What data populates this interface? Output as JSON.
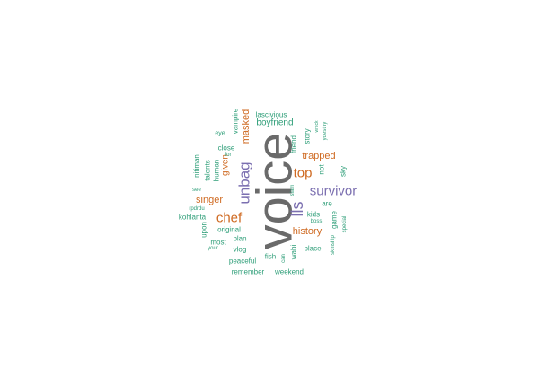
{
  "palette": {
    "gray": "#6a6a6a",
    "purple": "#7b6fb0",
    "orange": "#cf6a22",
    "green": "#2e9e78"
  },
  "words": [
    {
      "text": "voice",
      "color": "gray"
    },
    {
      "text": "survivor",
      "color": "purple"
    },
    {
      "text": "unbag",
      "color": "purple"
    },
    {
      "text": "lls",
      "color": "purple"
    },
    {
      "text": "chef",
      "color": "orange"
    },
    {
      "text": "top",
      "color": "orange"
    },
    {
      "text": "singer",
      "color": "orange"
    },
    {
      "text": "history",
      "color": "orange"
    },
    {
      "text": "trapped",
      "color": "orange"
    },
    {
      "text": "masked",
      "color": "orange"
    },
    {
      "text": "given",
      "color": "orange"
    },
    {
      "text": "boyfriend",
      "color": "green"
    },
    {
      "text": "lascivious",
      "color": "green"
    },
    {
      "text": "vampire",
      "color": "green"
    },
    {
      "text": "close",
      "color": "green"
    },
    {
      "text": "eye",
      "color": "green"
    },
    {
      "text": "for",
      "color": "green"
    },
    {
      "text": "talents",
      "color": "green"
    },
    {
      "text": "human",
      "color": "green"
    },
    {
      "text": "nitiman",
      "color": "green"
    },
    {
      "text": "see",
      "color": "green"
    },
    {
      "text": "rpdrdu",
      "color": "green"
    },
    {
      "text": "kohlanta",
      "color": "green"
    },
    {
      "text": "upon",
      "color": "green"
    },
    {
      "text": "your",
      "color": "green"
    },
    {
      "text": "most",
      "color": "green"
    },
    {
      "text": "original",
      "color": "green"
    },
    {
      "text": "plan",
      "color": "green"
    },
    {
      "text": "vlog",
      "color": "green"
    },
    {
      "text": "peaceful",
      "color": "green"
    },
    {
      "text": "remember",
      "color": "green"
    },
    {
      "text": "fish",
      "color": "green"
    },
    {
      "text": "can",
      "color": "green"
    },
    {
      "text": "wabi",
      "color": "green"
    },
    {
      "text": "weekend",
      "color": "green"
    },
    {
      "text": "place",
      "color": "green"
    },
    {
      "text": "boss",
      "color": "green"
    },
    {
      "text": "kids",
      "color": "green"
    },
    {
      "text": "game",
      "color": "green"
    },
    {
      "text": "are",
      "color": "green"
    },
    {
      "text": "skinship",
      "color": "green"
    },
    {
      "text": "special",
      "color": "green"
    },
    {
      "text": "friend",
      "color": "green"
    },
    {
      "text": "story",
      "color": "green"
    },
    {
      "text": "not",
      "color": "green"
    },
    {
      "text": "sky",
      "color": "green"
    },
    {
      "text": "siam",
      "color": "green"
    },
    {
      "text": "ydestny",
      "color": "green"
    },
    {
      "text": "wreck",
      "color": "green"
    }
  ]
}
